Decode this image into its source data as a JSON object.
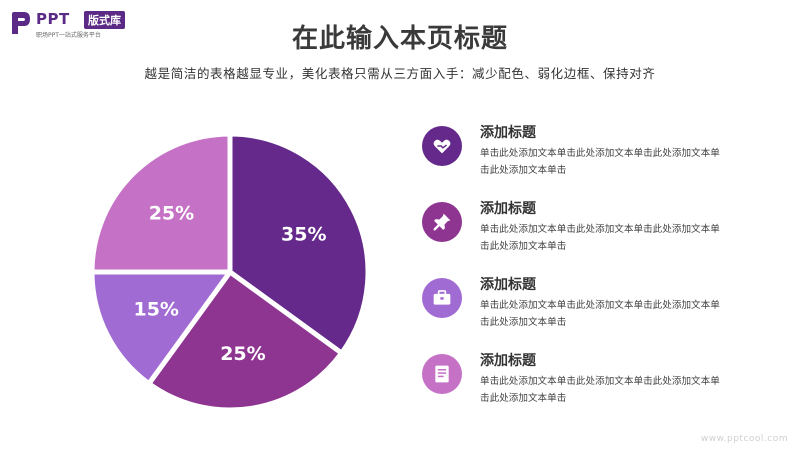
{
  "logo": {
    "title": "PPT",
    "badge": "版式库",
    "subtitle": "职场PPT一站式服务平台"
  },
  "header": {
    "title": "在此输入本页标题",
    "subtitle": "越是简洁的表格越显专业，美化表格只需从三方面入手：减少配色、弱化边框、保持对齐"
  },
  "chart_data": {
    "type": "pie",
    "slices": [
      {
        "value": 35,
        "label": "35%",
        "color": "#64298a"
      },
      {
        "value": 25,
        "label": "25%",
        "color": "#8e3591"
      },
      {
        "value": 15,
        "label": "15%",
        "color": "#a06bd2"
      },
      {
        "value": 25,
        "label": "25%",
        "color": "#c571c6"
      }
    ]
  },
  "items": [
    {
      "title": "添加标题",
      "text": "单击此处添加文本单击此处添加文本单击此处添加文本单击此处添加文本单击",
      "icon": "heart-hand-icon",
      "color": "#64298a"
    },
    {
      "title": "添加标题",
      "text": "单击此处添加文本单击此处添加文本单击此处添加文本单击此处添加文本单击",
      "icon": "pushpin-icon",
      "color": "#8e3591"
    },
    {
      "title": "添加标题",
      "text": "单击此处添加文本单击此处添加文本单击此处添加文本单击此处添加文本单击",
      "icon": "briefcase-icon",
      "color": "#a06bd2"
    },
    {
      "title": "添加标题",
      "text": "单击此处添加文本单击此处添加文本单击此处添加文本单击此处添加文本单击",
      "icon": "document-icon",
      "color": "#c571c6"
    }
  ],
  "watermark": "www.pptcool.com"
}
